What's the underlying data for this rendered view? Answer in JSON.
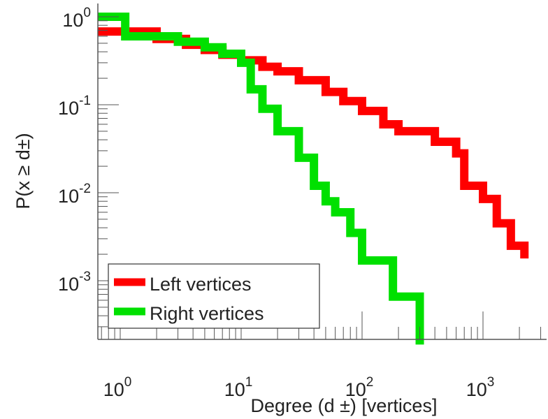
{
  "chart_data": {
    "type": "line",
    "title": "",
    "xlabel": "Degree (d ±) [vertices]",
    "ylabel": "P(x ≥ d±)",
    "xscale": "log",
    "yscale": "log",
    "xlim": [
      0.65,
      3400
    ],
    "ylim": [
      0.00021,
      1.08
    ],
    "x_ticks": [
      {
        "base": "10",
        "exp": "0",
        "value": 1
      },
      {
        "base": "10",
        "exp": "1",
        "value": 10
      },
      {
        "base": "10",
        "exp": "2",
        "value": 100
      },
      {
        "base": "10",
        "exp": "3",
        "value": 1000
      }
    ],
    "y_ticks": [
      {
        "base": "10",
        "exp": "0",
        "value": 1
      },
      {
        "base": "10",
        "exp": "-1",
        "value": 0.1
      },
      {
        "base": "10",
        "exp": "-2",
        "value": 0.01
      },
      {
        "base": "10",
        "exp": "-3",
        "value": 0.001
      }
    ],
    "legend_position": "bottom-left",
    "series": [
      {
        "name": "Left vertices",
        "color": "#ff0000",
        "x": [
          0.65,
          2,
          3.5,
          5,
          7,
          10,
          15,
          20,
          30,
          50,
          70,
          100,
          150,
          200,
          300,
          400,
          600,
          700,
          1000,
          1300,
          1700,
          2200
        ],
        "y": [
          0.68,
          0.56,
          0.48,
          0.42,
          0.37,
          0.32,
          0.27,
          0.24,
          0.19,
          0.14,
          0.11,
          0.085,
          0.06,
          0.05,
          0.05,
          0.038,
          0.028,
          0.012,
          0.0085,
          0.0045,
          0.0025,
          0.002
        ]
      },
      {
        "name": "Right vertices",
        "color": "#00e000",
        "x": [
          0.65,
          1.1,
          3,
          5,
          7,
          10,
          12,
          15,
          20,
          30,
          40,
          50,
          60,
          80,
          100,
          150,
          180,
          250,
          300
        ],
        "y": [
          1.0,
          0.6,
          0.52,
          0.45,
          0.38,
          0.3,
          0.15,
          0.09,
          0.05,
          0.025,
          0.012,
          0.008,
          0.006,
          0.0035,
          0.0017,
          0.0017,
          0.00066,
          0.00066,
          0.00021
        ]
      }
    ]
  }
}
